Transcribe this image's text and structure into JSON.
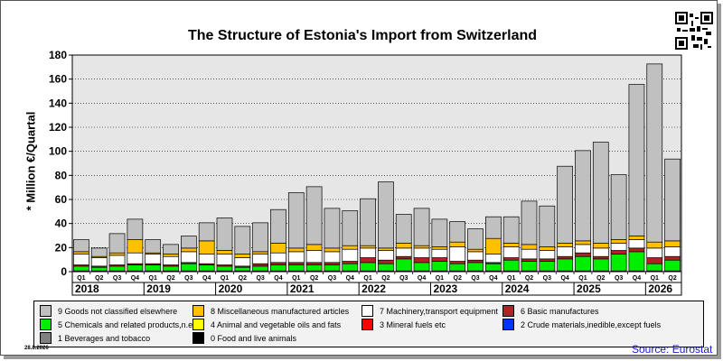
{
  "title": "The Structure of Estonia's Import from Switzerland",
  "date_stamp": "28.8.2026",
  "source": "Source: Eurostat",
  "chart_data": {
    "type": "bar",
    "stacked": true,
    "title": "The Structure of Estonia's Import from Switzerland",
    "ylabel": "* Million €/Quartal",
    "xlabel": "",
    "ylim": [
      0,
      180
    ],
    "yticks": [
      0,
      20,
      40,
      60,
      80,
      100,
      120,
      140,
      160,
      180
    ],
    "grid": true,
    "legend_position": "bottom",
    "categories": [
      "Q1",
      "Q2",
      "Q3",
      "Q4",
      "Q1",
      "Q2",
      "Q3",
      "Q4",
      "Q1",
      "Q2",
      "Q3",
      "Q4",
      "Q1",
      "Q2",
      "Q3",
      "Q4",
      "Q1",
      "Q2",
      "Q3",
      "Q4",
      "Q1",
      "Q2",
      "Q3",
      "Q4",
      "Q1",
      "Q2",
      "Q3",
      "Q4",
      "Q1",
      "Q2",
      "Q3",
      "Q4",
      "Q1",
      "Q2"
    ],
    "years": [
      "2018",
      "2019",
      "2020",
      "2021",
      "2022",
      "2023",
      "2024",
      "2025",
      "2026"
    ],
    "series": [
      {
        "name": "0 Food and live animals",
        "color": "#000000",
        "values": [
          0.3,
          0.3,
          0.3,
          0.3,
          0.3,
          0.3,
          0.3,
          0.3,
          0.3,
          0.3,
          0.3,
          0.3,
          0.3,
          0.3,
          0.3,
          0.3,
          0.3,
          0.3,
          0.3,
          0.3,
          0.3,
          0.3,
          0.3,
          0.3,
          0.3,
          0.3,
          0.3,
          0.3,
          0.3,
          0.3,
          0.3,
          0.3,
          0.3,
          0.3
        ]
      },
      {
        "name": "1 Beverages and tobacco",
        "color": "#808080",
        "values": [
          0.3,
          0.3,
          0.3,
          0.3,
          0.3,
          0.3,
          0.3,
          0.3,
          0.3,
          0.3,
          0.3,
          0.3,
          0.3,
          0.3,
          0.3,
          0.3,
          0.3,
          0.3,
          0.3,
          0.3,
          0.3,
          0.3,
          0.3,
          0.3,
          0.3,
          0.3,
          0.3,
          0.3,
          0.3,
          0.3,
          0.3,
          0.3,
          0.3,
          0.3
        ]
      },
      {
        "name": "2 Crude materials,inedible,except fuels",
        "color": "#0033ff",
        "values": [
          0,
          0,
          0,
          0,
          0,
          0,
          0,
          0,
          0,
          0,
          0,
          0,
          0,
          0,
          0,
          0,
          0,
          0,
          0,
          0,
          0,
          0,
          0,
          0,
          0,
          0,
          0,
          0,
          0,
          0,
          0,
          0,
          0,
          0
        ]
      },
      {
        "name": "3 Mineral fuels etc",
        "color": "#ff0000",
        "values": [
          0,
          0,
          0,
          0,
          0,
          0,
          0,
          0,
          0,
          0,
          0,
          0,
          0,
          0,
          0,
          0,
          0,
          0,
          0,
          0,
          0,
          0,
          0,
          0,
          0,
          0,
          0,
          0,
          0,
          0,
          0,
          0,
          0,
          0
        ]
      },
      {
        "name": "4 Animal and vegetable oils and fats",
        "color": "#ffff00",
        "values": [
          0,
          0,
          0,
          0,
          0,
          0,
          0,
          0,
          0,
          0,
          0,
          0,
          0,
          0,
          0,
          0,
          0,
          0,
          0,
          0,
          0,
          0,
          0,
          0,
          0,
          0,
          0,
          0,
          0,
          0,
          0,
          0,
          0,
          0
        ]
      },
      {
        "name": "5 Chemicals and related products,n.e.s.",
        "color": "#00ee00",
        "values": [
          4,
          3,
          4,
          5,
          5,
          4,
          6,
          5,
          4,
          3,
          4,
          5,
          5,
          5,
          5,
          6,
          7,
          6,
          10,
          7,
          8,
          6,
          7,
          6,
          9,
          8,
          8,
          10,
          12,
          10,
          14,
          16,
          6,
          9
        ]
      },
      {
        "name": "6 Basic manufactures",
        "color": "#b22222",
        "values": [
          1,
          1,
          1,
          1,
          1,
          1,
          1,
          1,
          1,
          1,
          2,
          2,
          2,
          2,
          2,
          2,
          4,
          3,
          2,
          4,
          3,
          2,
          2,
          1,
          2,
          2,
          2,
          2,
          3,
          2,
          3,
          3,
          5,
          3
        ]
      },
      {
        "name": "7 Machinery,transport equipment",
        "color": "#ffffff",
        "values": [
          9,
          7,
          8,
          9,
          8,
          7,
          9,
          8,
          9,
          7,
          8,
          8,
          9,
          10,
          9,
          10,
          8,
          8,
          7,
          8,
          7,
          12,
          7,
          7,
          9,
          8,
          7,
          8,
          7,
          7,
          6,
          7,
          8,
          8
        ]
      },
      {
        "name": "8 Miscellaneous manufactured articles",
        "color": "#ffc000",
        "values": [
          2,
          1,
          2,
          11,
          1,
          2,
          3,
          11,
          3,
          3,
          2,
          8,
          3,
          5,
          3,
          3,
          2,
          2,
          4,
          2,
          2,
          4,
          2,
          13,
          3,
          4,
          3,
          3,
          3,
          4,
          3,
          3,
          5,
          5
        ]
      },
      {
        "name": "9 Goods not classified elsewhere",
        "color": "#c0c0c0",
        "values": [
          10,
          7,
          16,
          17,
          11,
          8,
          10,
          15,
          27,
          23,
          24,
          28,
          46,
          48,
          33,
          29,
          39,
          55,
          24,
          31,
          23,
          17,
          17,
          18,
          22,
          36,
          34,
          64,
          75,
          84,
          54,
          126,
          148,
          68
        ]
      }
    ]
  }
}
